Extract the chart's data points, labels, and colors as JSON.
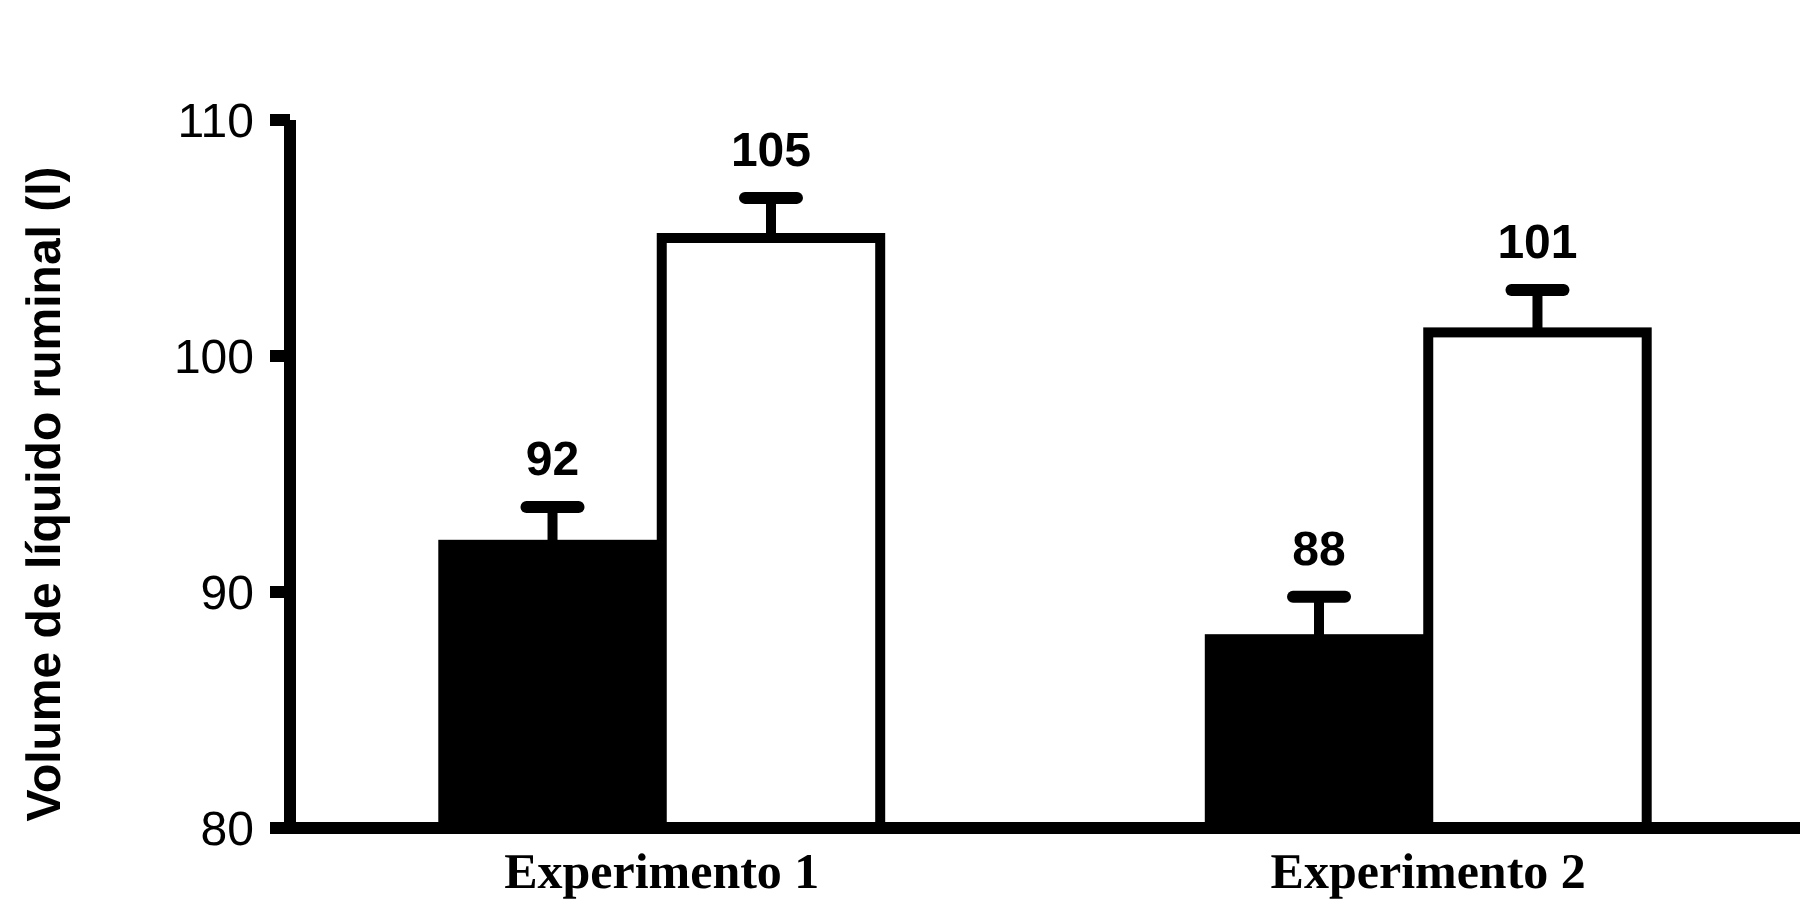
{
  "chart_data": {
    "type": "bar",
    "ylabel": "Volume de líquido ruminal (l)",
    "categories": [
      "Experimento 1",
      "Experimento 2"
    ],
    "series": [
      {
        "color": "#000000",
        "values": [
          92,
          88
        ],
        "errors": [
          [
            92,
            93.6
          ],
          [
            88,
            89.8
          ]
        ]
      },
      {
        "color": "#ffffff",
        "values": [
          105,
          101
        ],
        "errors": [
          [
            105,
            106.7
          ],
          [
            101,
            102.8
          ]
        ]
      }
    ],
    "ylim": [
      80,
      110
    ],
    "yticks": [
      80,
      90,
      100,
      110
    ],
    "data_labels": true,
    "grid": false
  }
}
